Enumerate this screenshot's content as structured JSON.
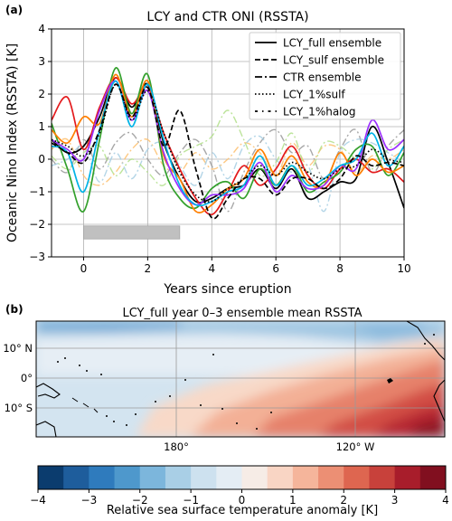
{
  "panel_a": {
    "tag": "(a)",
    "title": "LCY and CTR ONI (RSSTA)",
    "xlabel": "Years since eruption",
    "ylabel": "Oceanic Nino Index (RSSTA) [K]",
    "legend": [
      {
        "label": "LCY_full ensemble",
        "style": "solid"
      },
      {
        "label": "LCY_sulf ensemble",
        "style": "dashed"
      },
      {
        "label": "CTR ensemble",
        "style": "dashdot"
      },
      {
        "label": "LCY_1%sulf",
        "style": "dotted"
      },
      {
        "label": "LCY_1%halog",
        "style": "loosedashdot"
      }
    ]
  },
  "panel_b": {
    "tag": "(b)",
    "title": "LCY_full year 0–3 ensemble mean RSSTA",
    "lat_labels": [
      "10° N",
      "0°",
      "10° S"
    ],
    "lon_labels": [
      "180°",
      "120° W"
    ],
    "colorbar_label": "Relative sea surface temperature anomaly [K]",
    "colorbar_ticks": [
      "−4",
      "−3",
      "−2",
      "−1",
      "0",
      "1",
      "2",
      "3",
      "4"
    ],
    "colorbar_colors": [
      "#0b3c6e",
      "#1e5d9c",
      "#2f7bbd",
      "#4e98cc",
      "#7cb6dc",
      "#a9cfe6",
      "#cde1ef",
      "#e4edf4",
      "#f6ece6",
      "#f9d5c4",
      "#f5b59b",
      "#ec8f74",
      "#de6650",
      "#c8413b",
      "#a81d2b",
      "#810f1f"
    ]
  },
  "chart_data": [
    {
      "type": "line",
      "title": "LCY and CTR ONI (RSSTA)",
      "xlabel": "Years since eruption",
      "ylabel": "Oceanic Nino Index (RSSTA) [K]",
      "xlim": [
        -1,
        10
      ],
      "ylim": [
        -3,
        4
      ],
      "xticks": [
        0,
        2,
        4,
        6,
        8,
        10
      ],
      "yticks": [
        -3,
        -2,
        -1,
        0,
        1,
        2,
        3,
        4
      ],
      "grid": true,
      "legend_position": "top-right",
      "shaded_bar": {
        "x": [
          0,
          3
        ],
        "y": [
          -2.45,
          -2.05
        ],
        "color": "#c0c0c0"
      },
      "x": [
        -1,
        -0.5,
        0,
        0.5,
        1,
        1.5,
        2,
        2.5,
        3,
        3.5,
        4,
        4.5,
        5,
        5.5,
        6,
        6.5,
        7,
        7.5,
        8,
        8.5,
        9,
        9.5,
        10
      ],
      "series": [
        {
          "style": "solid",
          "color": "#000000",
          "values": [
            0.6,
            0.2,
            0.4,
            1.3,
            2.5,
            1.6,
            2.3,
            0.5,
            -0.6,
            -1.3,
            -1.2,
            -0.9,
            -0.8,
            -0.3,
            -0.9,
            -0.3,
            -1.2,
            -1.0,
            -0.7,
            -0.6,
            1.0,
            -0.1,
            -1.5
          ]
        },
        {
          "style": "solid",
          "color": "#e31a1c",
          "values": [
            1.2,
            1.9,
            0.3,
            1.6,
            2.5,
            1.7,
            2.2,
            0.8,
            -0.3,
            -1.2,
            -1.7,
            -1.0,
            -0.2,
            -0.8,
            -0.3,
            0.4,
            -0.5,
            -0.9,
            -0.3,
            0.0,
            -0.4,
            -0.3,
            -0.7
          ]
        },
        {
          "style": "solid",
          "color": "#33a02c",
          "values": [
            1.1,
            -0.3,
            -1.6,
            0.6,
            2.8,
            1.4,
            2.6,
            -0.2,
            -1.2,
            -1.5,
            -0.9,
            -0.7,
            -1.2,
            -0.3,
            -0.8,
            -0.2,
            -1.0,
            -0.7,
            -0.4,
            0.3,
            0.4,
            -0.5,
            0.2
          ]
        },
        {
          "style": "solid",
          "color": "#ff7f00",
          "values": [
            0.9,
            0.5,
            1.3,
            1.1,
            2.6,
            1.3,
            2.4,
            0.1,
            -0.6,
            -1.6,
            -1.4,
            -0.9,
            -0.6,
            0.3,
            -0.5,
            0.1,
            -0.7,
            -0.8,
            0.2,
            -0.5,
            0.0,
            -0.4,
            -0.2
          ]
        },
        {
          "style": "solid",
          "color": "#9b30ff",
          "values": [
            0.6,
            0.3,
            0.0,
            1.5,
            2.4,
            1.2,
            2.1,
            0.2,
            -0.9,
            -1.4,
            -1.1,
            -1.1,
            -0.9,
            -0.1,
            -1.0,
            -0.5,
            -0.9,
            -0.8,
            -0.2,
            -0.3,
            1.2,
            0.3,
            0.6
          ]
        },
        {
          "style": "solid",
          "color": "#00b3e6",
          "values": [
            0.4,
            0.2,
            -1.0,
            0.9,
            2.4,
            1.0,
            2.3,
            0.6,
            -0.8,
            -1.4,
            -1.3,
            -1.0,
            -0.8,
            0.1,
            -0.8,
            -0.2,
            -0.8,
            -0.6,
            -0.2,
            0.0,
            0.8,
            -0.2,
            0.4
          ]
        },
        {
          "style": "dashed",
          "color": "#000000",
          "values": [
            0.5,
            0.2,
            -0.1,
            0.9,
            2.3,
            1.3,
            2.2,
            0.4,
            1.5,
            -0.3,
            -1.8,
            -1.2,
            -0.6,
            -0.6,
            -1.1,
            -0.6,
            -0.6,
            -0.9,
            -0.6,
            0.1,
            -0.2,
            -0.1,
            -0.2
          ]
        },
        {
          "style": "dotted",
          "color": "#000000",
          "values": [
            0.6,
            0.4,
            0.1,
            0.8,
            2.3,
            1.2,
            2.1,
            0.8,
            -0.4,
            -1.1,
            -1.3,
            -0.9,
            -0.6,
            -0.2,
            -0.5,
            -0.1,
            -0.4,
            -0.6,
            -0.3,
            -0.2,
            0.3,
            0.0,
            -0.1
          ]
        },
        {
          "style": "dashdot",
          "color": "#999999",
          "values": [
            0.0,
            -0.4,
            0.6,
            -0.3,
            0.5,
            0.8,
            0.0,
            -0.5,
            0.2,
            0.6,
            -0.2,
            -1.6,
            -0.4,
            0.5,
            0.9,
            0.2,
            0.4,
            -0.6,
            0.3,
            0.9,
            -0.4,
            0.4,
            0.9
          ]
        },
        {
          "style": "dashdot",
          "color": "#fdbf6f",
          "values": [
            0.3,
            0.6,
            -0.5,
            -0.8,
            -0.4,
            0.3,
            0.6,
            -0.2,
            -0.4,
            0.2,
            -0.3,
            0.0,
            0.5,
            0.2,
            -0.5,
            0.5,
            -0.2,
            0.4,
            0.3,
            -0.4,
            0.1,
            0.0,
            0.3
          ]
        },
        {
          "style": "dashdot",
          "color": "#a6cee3",
          "values": [
            -0.2,
            0.0,
            0.4,
            -0.7,
            0.2,
            -0.6,
            0.3,
            0.5,
            -0.2,
            -0.8,
            0.2,
            -0.6,
            0.4,
            0.7,
            0.0,
            -0.4,
            -0.2,
            -1.6,
            0.2,
            0.6,
            0.5,
            0.2,
            -0.1
          ]
        },
        {
          "style": "dashdot",
          "color": "#b2df8a",
          "values": [
            0.1,
            -0.3,
            0.2,
            0.4,
            -0.5,
            0.0,
            -0.4,
            -0.8,
            0.1,
            0.4,
            0.7,
            1.5,
            0.6,
            -0.5,
            -0.1,
            0.8,
            -0.4,
            0.5,
            0.4,
            0.0,
            -0.3,
            0.3,
            0.6
          ]
        }
      ]
    },
    {
      "type": "heatmap",
      "title": "LCY_full year 0–3 ensemble mean RSSTA",
      "x_axis": [
        "180°",
        "120° W"
      ],
      "y_axis": [
        "10° N",
        "0°",
        "10° S"
      ],
      "colorbar_range": [
        -4,
        4
      ],
      "colorbar_ticks": [
        -4,
        -3,
        -2,
        -1,
        0,
        1,
        2,
        3,
        4
      ],
      "colorbar_label": "Relative sea surface temperature anomaly [K]"
    }
  ]
}
